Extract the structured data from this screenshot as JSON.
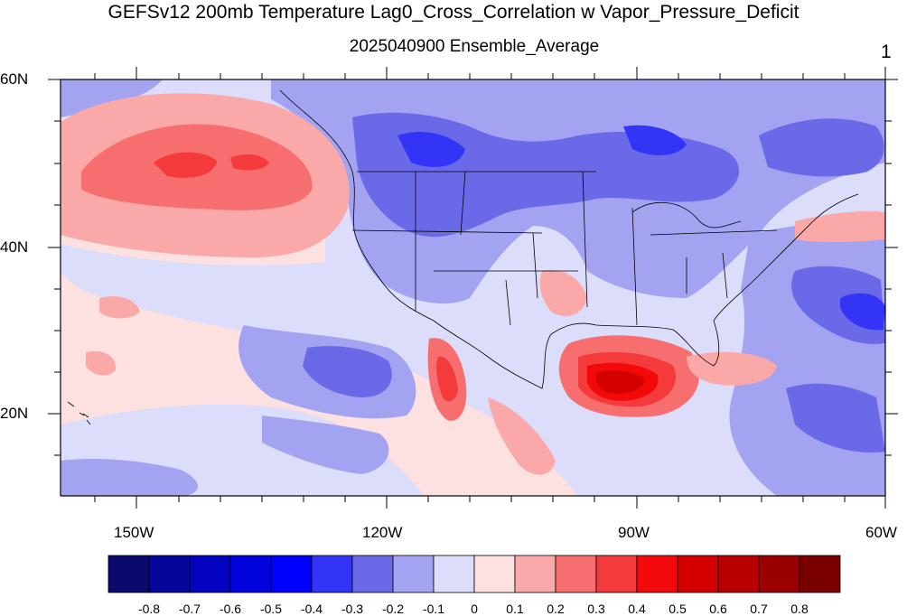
{
  "title": "GEFSv12 200mb Temperature Lag0_Cross_Correlation w Vapor_Pressure_Deficit",
  "subtitle": "2025040900 Ensemble_Average",
  "corner_label": "1",
  "axes": {
    "lat_labels": [
      "60N",
      "40N",
      "20N"
    ],
    "lon_labels": [
      "150W",
      "120W",
      "90W",
      "60W"
    ]
  },
  "colorbar": {
    "labels": [
      "-0.8",
      "-0.7",
      "-0.6",
      "-0.5",
      "-0.4",
      "-0.3",
      "-0.2",
      "-0.1",
      "0",
      "0.1",
      "0.2",
      "0.3",
      "0.4",
      "0.5",
      "0.6",
      "0.7",
      "0.8"
    ],
    "colors": [
      "#0a0a6e",
      "#06069a",
      "#0404c0",
      "#0202dd",
      "#0000ff",
      "#3434f6",
      "#6a6ae8",
      "#a3a3f2",
      "#dcdcfb",
      "#fde1e1",
      "#faa8a8",
      "#f76e6e",
      "#f43a3a",
      "#f20a0a",
      "#d40000",
      "#b80000",
      "#9a0000",
      "#7a0000"
    ]
  },
  "map": {
    "land_line_color": "#000000",
    "field_colors": {
      "background_light_red": "#fde1e1",
      "background_light_blue": "#dcdcfb"
    }
  }
}
